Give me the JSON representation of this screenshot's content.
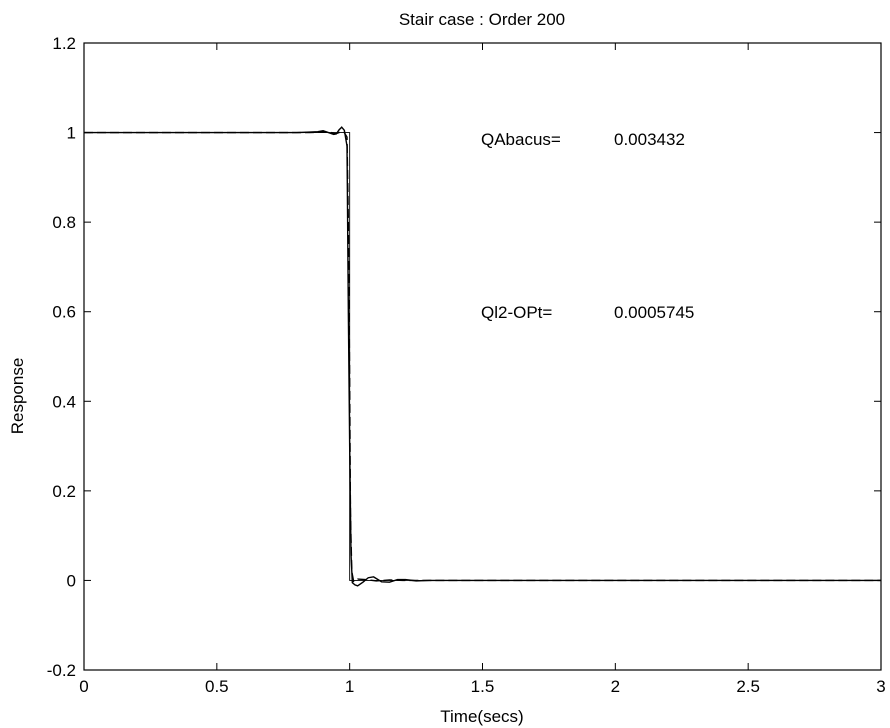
{
  "chart_data": {
    "type": "line",
    "title": "Stair case : Order 200",
    "xlabel": "Time(secs)",
    "ylabel": "Response",
    "xlim": [
      0,
      3
    ],
    "ylim": [
      -0.2,
      1.2
    ],
    "xticks": [
      0,
      0.5,
      1,
      1.5,
      2,
      2.5,
      3
    ],
    "xtick_labels": [
      "0",
      "0.5",
      "1",
      "1.5",
      "2",
      "2.5",
      "3"
    ],
    "yticks": [
      -0.2,
      0,
      0.2,
      0.4,
      0.6,
      0.8,
      1,
      1.2
    ],
    "ytick_labels": [
      "-0.2",
      "0",
      "0.2",
      "0.4",
      "0.6",
      "0.8",
      "1",
      "1.2"
    ],
    "grid": false,
    "series": [
      {
        "style": "solid",
        "x": [
          0,
          0.8,
          0.85,
          0.88,
          0.9,
          0.92,
          0.94,
          0.95,
          0.96,
          0.97,
          0.98,
          0.99,
          0.995,
          1.0,
          1.005,
          1.01,
          1.02,
          1.03,
          1.05,
          1.07,
          1.09,
          1.12,
          1.15,
          1.18,
          1.21,
          1.25,
          1.3,
          1.4,
          3
        ],
        "y": [
          1.0,
          1.0,
          1.001,
          1.002,
          1.004,
          1.0,
          0.996,
          0.997,
          1.006,
          1.012,
          1.005,
          0.97,
          0.6,
          0.3,
          0.06,
          -0.005,
          -0.01,
          -0.012,
          -0.004,
          0.006,
          0.008,
          -0.003,
          -0.004,
          0.002,
          0.002,
          -0.001,
          0.0,
          0.0,
          0.0
        ]
      },
      {
        "style": "dashed",
        "x": [
          0,
          0.7,
          0.85,
          0.9,
          0.93,
          0.95,
          0.97,
          0.98,
          0.99,
          0.995,
          1.0,
          1.003,
          1.008,
          1.015,
          1.03,
          1.06,
          1.1,
          1.15,
          1.2,
          1.3,
          3
        ],
        "y": [
          1.0,
          1.0,
          1.0,
          1.001,
          1.0,
          0.998,
          1.002,
          1.0,
          0.99,
          0.8,
          0.45,
          0.15,
          0.02,
          -0.002,
          0.003,
          0.002,
          -0.001,
          0.001,
          0.0,
          0.0,
          0.0
        ]
      },
      {
        "style": "ideal",
        "x": [
          0,
          1.0,
          1.0,
          3
        ],
        "y": [
          1.0,
          1.0,
          0.0,
          0.0
        ]
      }
    ],
    "annotations": [
      {
        "label": "QAbacus=",
        "value": "0.003432"
      },
      {
        "label": "Ql2-OPt=",
        "value": "0.0005745"
      }
    ]
  }
}
